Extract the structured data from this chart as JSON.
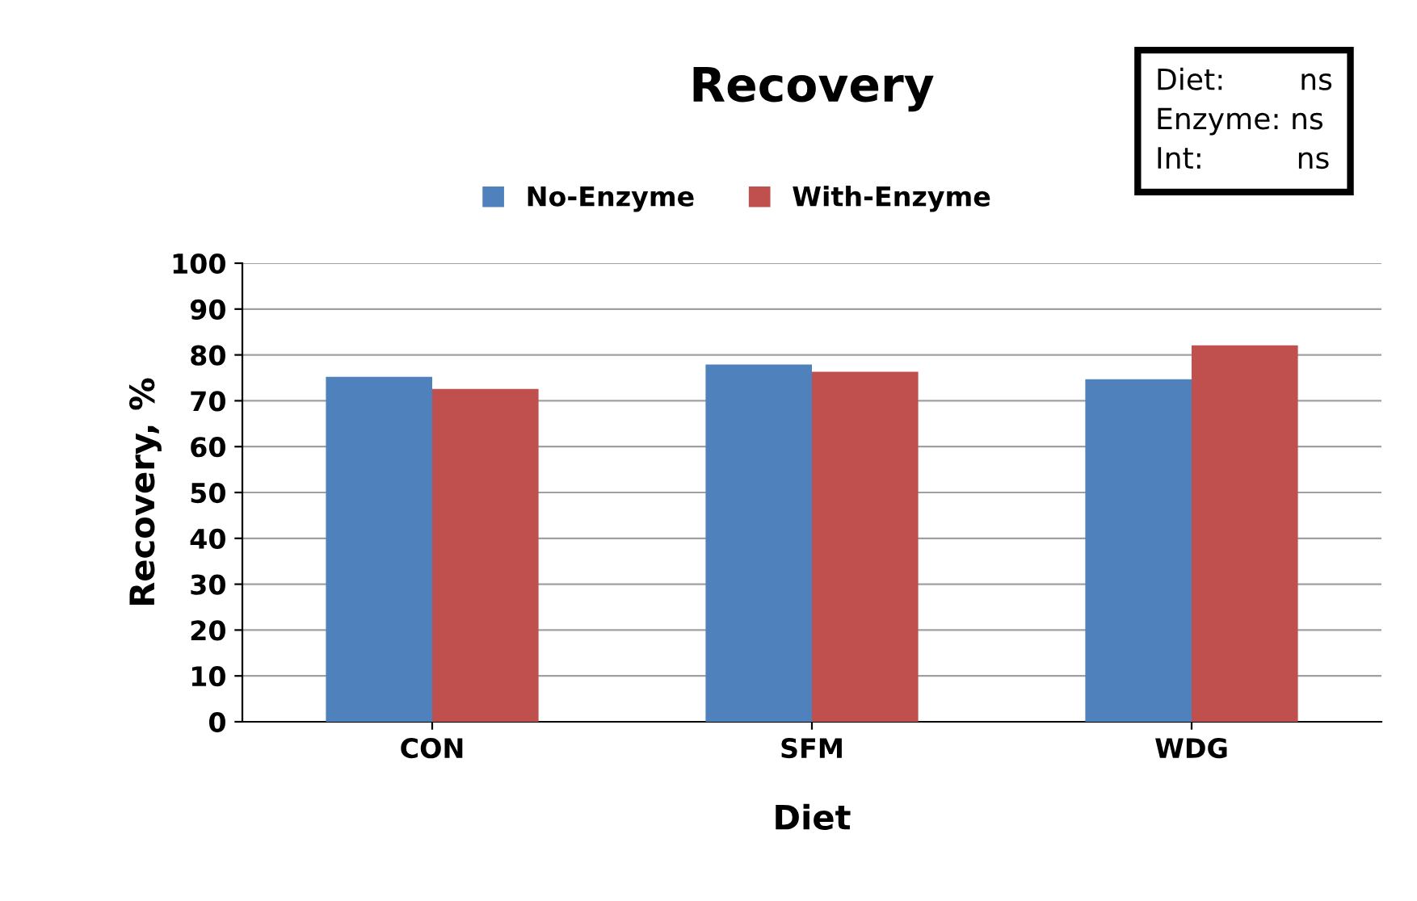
{
  "chart_data": {
    "type": "bar",
    "title": "Recovery",
    "xlabel": "Diet",
    "ylabel": "Recovery, %",
    "categories": [
      "CON",
      "SFM",
      "WDG"
    ],
    "series": [
      {
        "name": "No-Enzyme",
        "color": "#4f81bd",
        "values": [
          75.2,
          77.9,
          74.7
        ]
      },
      {
        "name": "With-Enzyme",
        "color": "#c0504d",
        "values": [
          72.6,
          76.3,
          82.1
        ]
      }
    ],
    "ylim": [
      0,
      100
    ],
    "yticks": [
      0,
      10,
      20,
      30,
      40,
      50,
      60,
      70,
      80,
      90,
      100
    ],
    "grid": "y",
    "legend": "top",
    "annotations": [
      "Diet:        ns\nEnzyme: ns\nInt:          ns"
    ]
  }
}
